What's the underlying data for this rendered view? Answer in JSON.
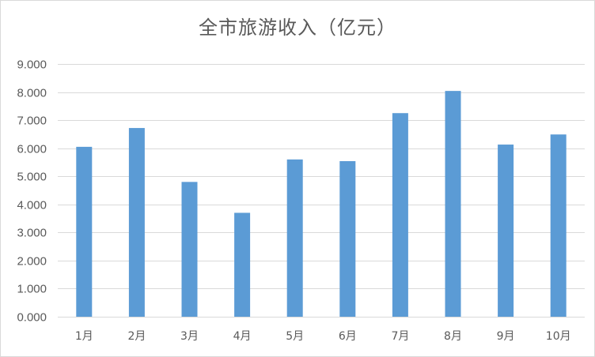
{
  "chart_data": {
    "type": "bar",
    "title": "全市旅游收入（亿元）",
    "xlabel": "",
    "ylabel": "",
    "categories": [
      "1月",
      "2月",
      "3月",
      "4月",
      "5月",
      "6月",
      "7月",
      "8月",
      "9月",
      "10月"
    ],
    "values": [
      6.05,
      6.72,
      4.8,
      3.7,
      5.6,
      5.54,
      7.25,
      8.04,
      6.13,
      6.49
    ],
    "ylim": [
      0,
      9
    ],
    "yticks": [
      "0.000",
      "1.000",
      "2.000",
      "3.000",
      "4.000",
      "5.000",
      "6.000",
      "7.000",
      "8.000",
      "9.000"
    ],
    "ytick_values": [
      0,
      1,
      2,
      3,
      4,
      5,
      6,
      7,
      8,
      9
    ],
    "grid": true,
    "legend": "none",
    "bar_color": "#5b9bd5",
    "grid_color": "#d9d9d9"
  }
}
